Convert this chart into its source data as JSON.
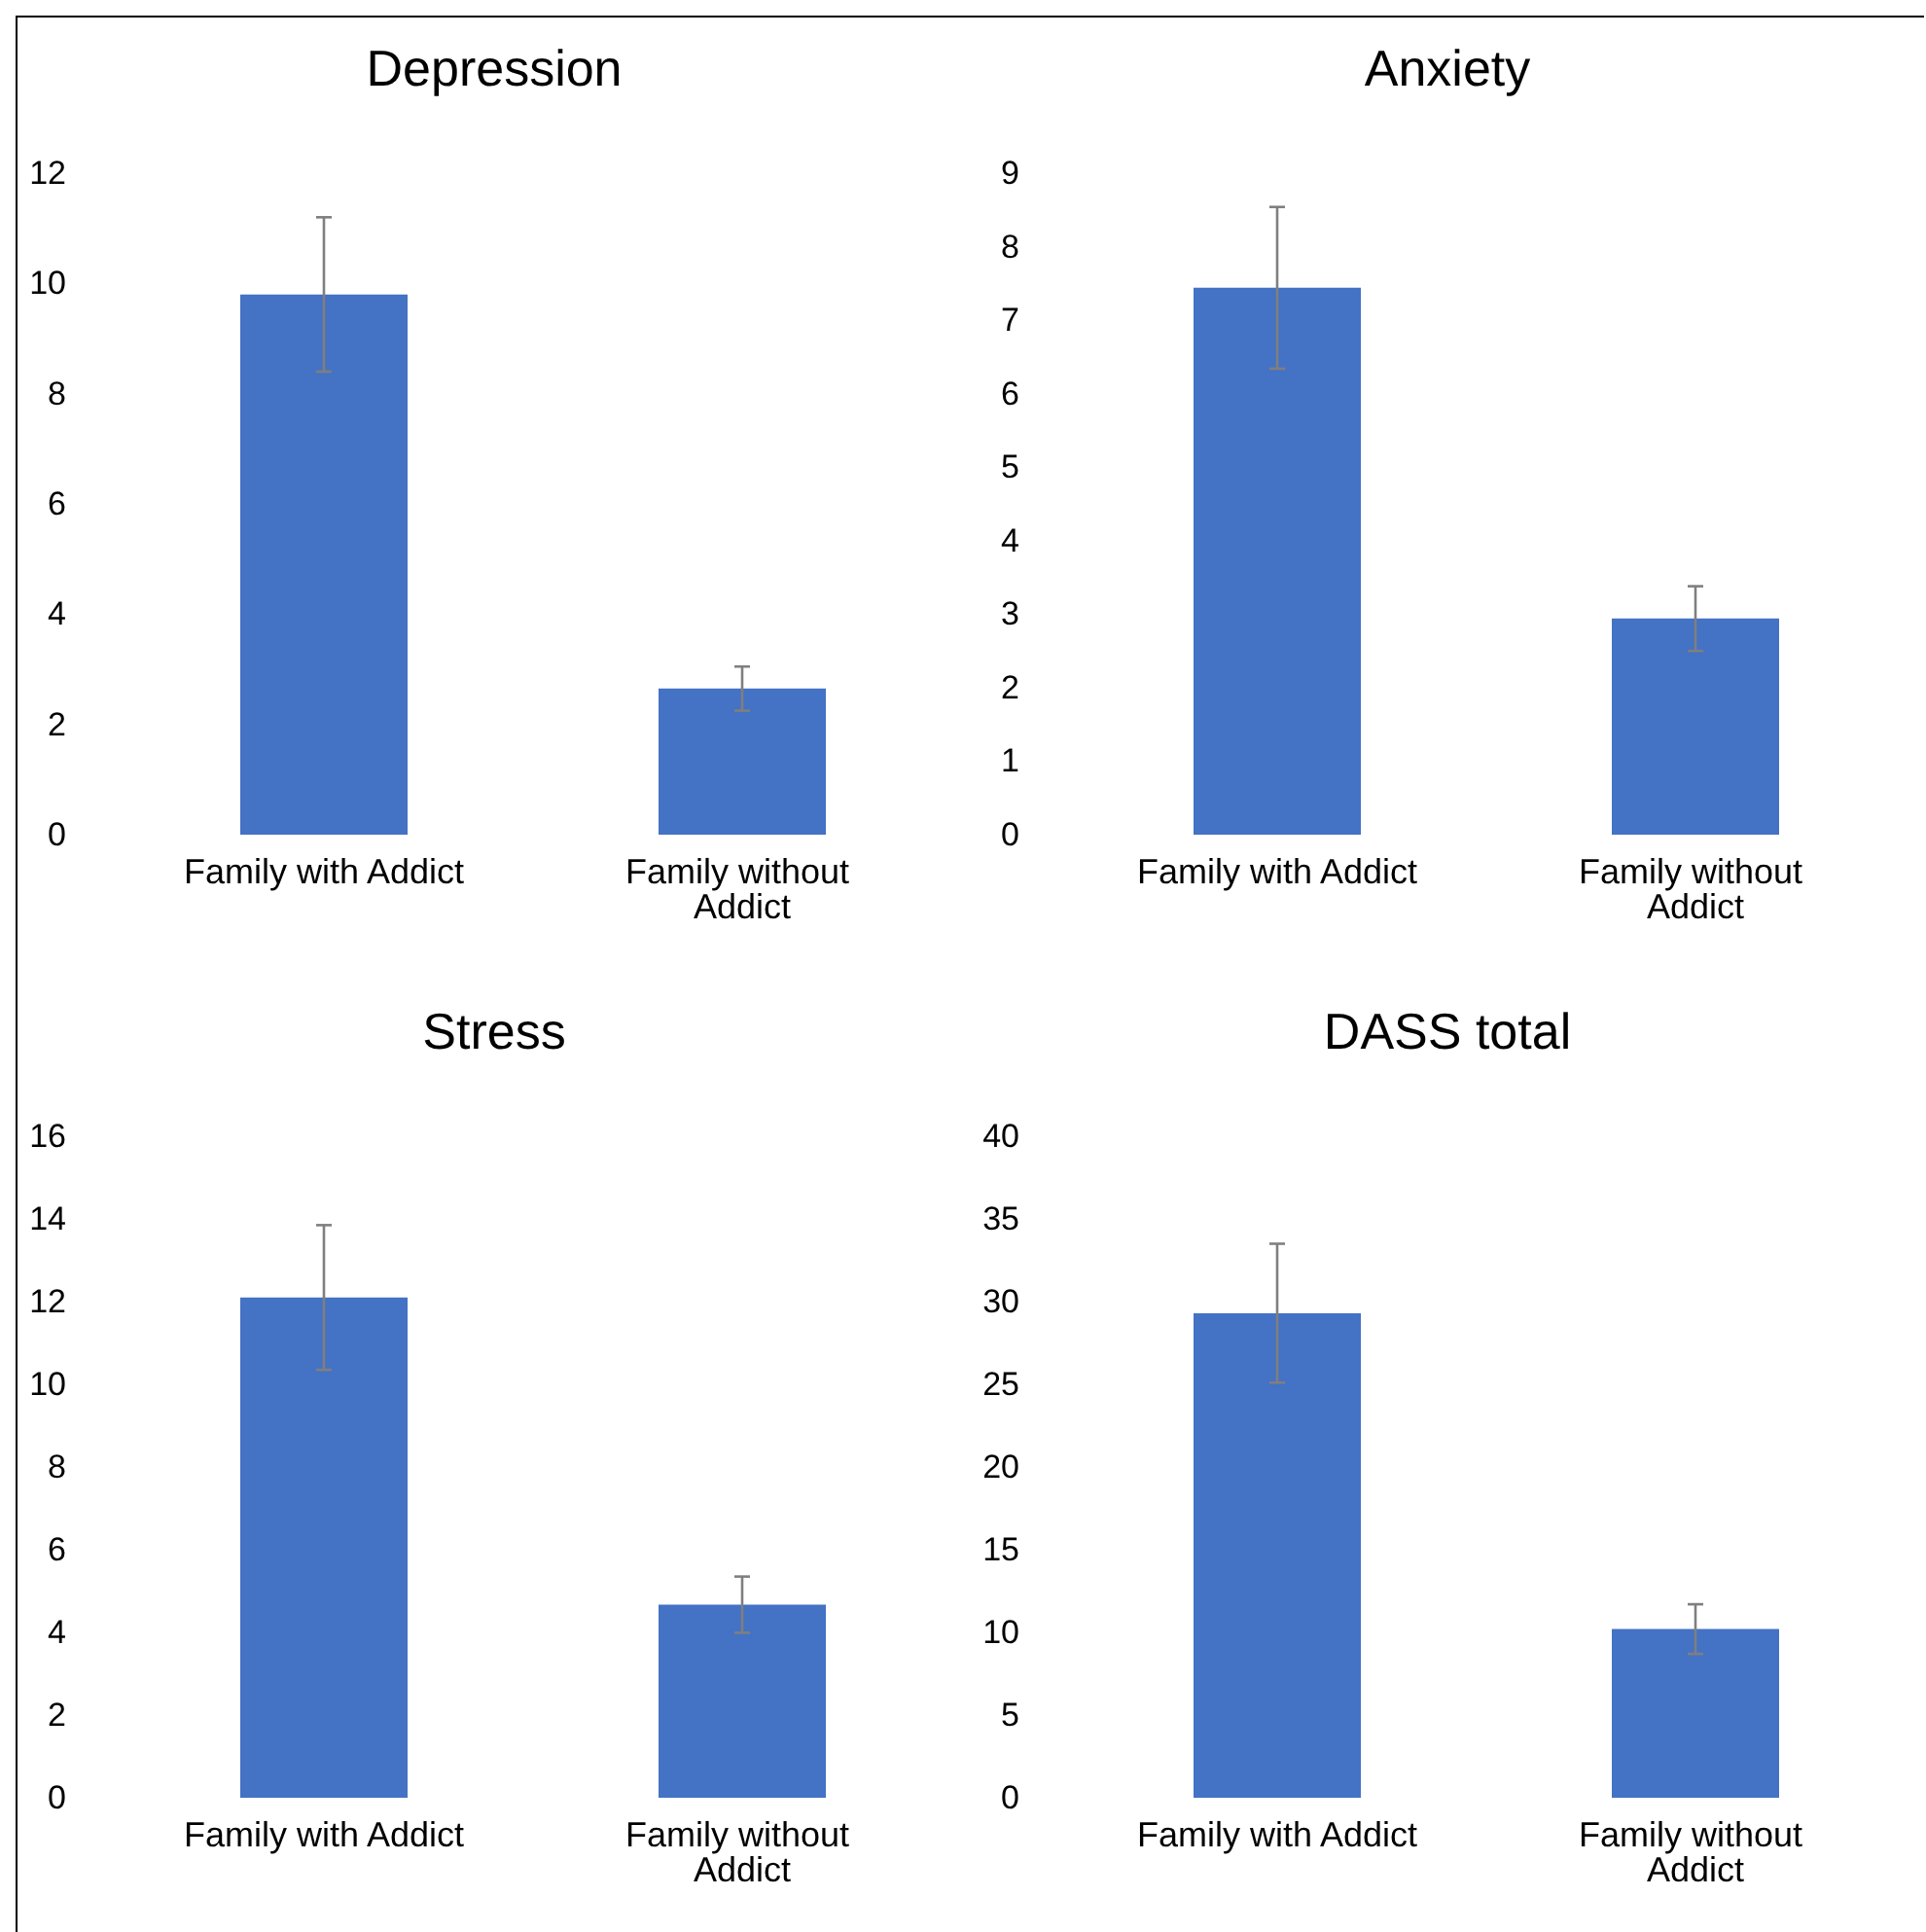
{
  "chart_data": [
    {
      "type": "bar",
      "title": "Depression",
      "categories": [
        "Family with Addict",
        "Family without Addict"
      ],
      "values": [
        9.8,
        2.65
      ],
      "errors": [
        1.4,
        0.4
      ],
      "color": "#4472c4",
      "ylim": [
        0,
        12
      ],
      "yticks": [
        0,
        2,
        4,
        6,
        8,
        10,
        12
      ]
    },
    {
      "type": "bar",
      "title": "Anxiety",
      "categories": [
        "Family with Addict",
        "Family without Addict"
      ],
      "values": [
        7.44,
        2.94
      ],
      "errors": [
        1.1,
        0.44
      ],
      "color": "#4472c4",
      "ylim": [
        0,
        9
      ],
      "yticks": [
        0,
        1,
        2,
        3,
        4,
        5,
        6,
        7,
        8,
        9
      ]
    },
    {
      "type": "bar",
      "title": "Stress",
      "categories": [
        "Family with Addict",
        "Family without Addict"
      ],
      "values": [
        12.1,
        4.67
      ],
      "errors": [
        1.75,
        0.68
      ],
      "color": "#4472c4",
      "ylim": [
        0,
        16
      ],
      "yticks": [
        0,
        2,
        4,
        6,
        8,
        10,
        12,
        14,
        16
      ]
    },
    {
      "type": "bar",
      "title": "DASS total",
      "categories": [
        "Family with Addict",
        "Family without Addict"
      ],
      "values": [
        29.3,
        10.2
      ],
      "errors": [
        4.2,
        1.5
      ],
      "color": "#4472c4",
      "ylim": [
        0,
        40
      ],
      "yticks": [
        0,
        5,
        10,
        15,
        20,
        25,
        30,
        35,
        40
      ]
    }
  ]
}
